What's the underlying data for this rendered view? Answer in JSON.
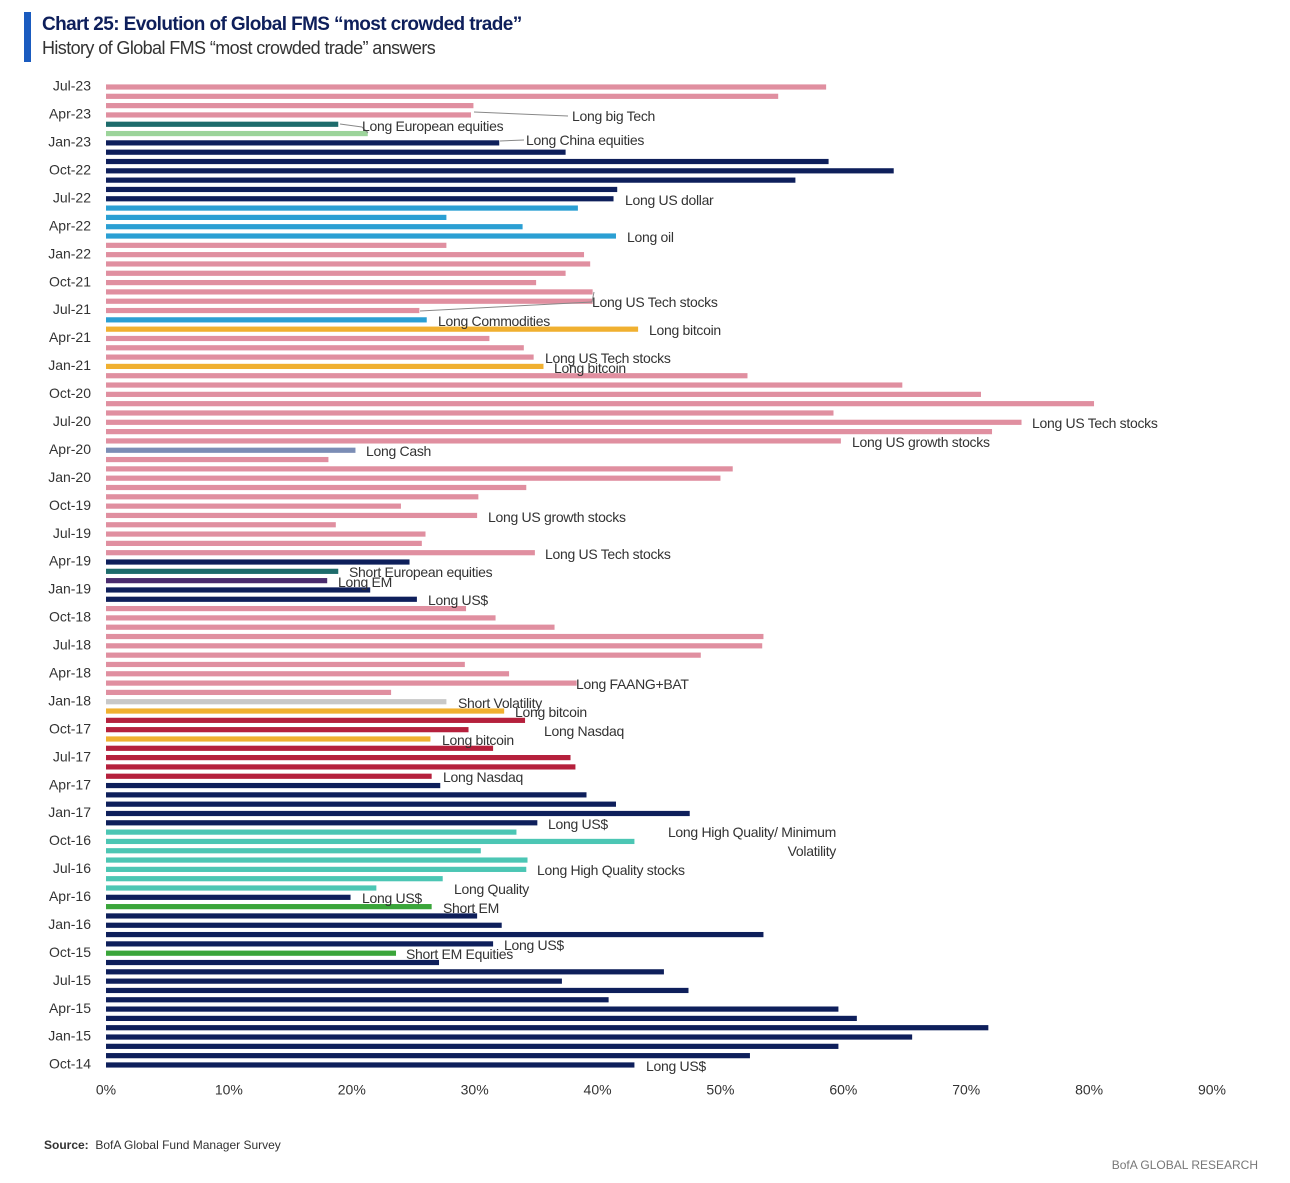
{
  "chart_data": {
    "type": "bar",
    "orientation": "horizontal",
    "title": "Chart 25: Evolution of Global FMS “most crowded trade”",
    "subtitle": "History of Global FMS “most crowded trade” answers",
    "source_label": "Source:",
    "source": "BofA Global Fund Manager Survey",
    "brand": "BofA GLOBAL RESEARCH",
    "categories": [
      "Jul-23",
      null,
      null,
      "Apr-23",
      null,
      null,
      "Jan-23",
      null,
      null,
      "Oct-22",
      null,
      null,
      "Jul-22",
      null,
      null,
      "Apr-22",
      null,
      null,
      "Jan-22",
      null,
      null,
      "Oct-21",
      null,
      null,
      "Jul-21",
      null,
      null,
      "Apr-21",
      null,
      null,
      "Jan-21",
      null,
      null,
      "Oct-20",
      null,
      null,
      "Jul-20",
      null,
      null,
      "Apr-20",
      null,
      null,
      "Jan-20",
      null,
      null,
      "Oct-19",
      null,
      null,
      "Jul-19",
      null,
      null,
      "Apr-19",
      null,
      null,
      "Jan-19",
      null,
      null,
      "Oct-18",
      null,
      null,
      "Jul-18",
      null,
      null,
      "Apr-18",
      null,
      null,
      "Jan-18",
      null,
      null,
      "Oct-17",
      null,
      null,
      "Jul-17",
      null,
      null,
      "Apr-17",
      null,
      null,
      "Jan-17",
      null,
      null,
      "Oct-16",
      null,
      null,
      "Jul-16",
      null,
      null,
      "Apr-16",
      null,
      null,
      "Jan-16",
      null,
      null,
      "Oct-15",
      null,
      null,
      "Jul-15",
      null,
      null,
      "Apr-15",
      null,
      null,
      "Jan-15",
      null,
      null,
      "Oct-14"
    ],
    "values": [
      58.6,
      54.7,
      29.9,
      29.7,
      18.9,
      21.3,
      32.0,
      37.4,
      58.8,
      64.1,
      56.1,
      41.6,
      41.3,
      38.4,
      27.7,
      33.9,
      41.5,
      27.7,
      38.9,
      39.4,
      37.4,
      35.0,
      39.6,
      39.6,
      25.5,
      26.1,
      43.3,
      31.2,
      34.0,
      34.8,
      35.6,
      52.2,
      64.8,
      71.2,
      80.4,
      59.2,
      74.5,
      72.1,
      59.8,
      20.3,
      18.1,
      51.0,
      50.0,
      34.2,
      30.3,
      24.0,
      30.2,
      18.7,
      26.0,
      25.7,
      34.9,
      24.7,
      18.9,
      18.0,
      21.5,
      25.3,
      29.3,
      31.7,
      36.5,
      53.5,
      53.4,
      48.4,
      29.2,
      32.8,
      38.3,
      23.2,
      27.7,
      32.4,
      34.1,
      29.5,
      26.4,
      31.5,
      37.8,
      38.2,
      26.5,
      27.2,
      39.1,
      41.5,
      47.5,
      35.1,
      33.4,
      43.0,
      30.5,
      34.3,
      34.2,
      27.4,
      22.0,
      19.9,
      26.5,
      30.2,
      32.2,
      53.5,
      31.5,
      23.6,
      27.1,
      45.4,
      37.1,
      47.4,
      40.9,
      59.6,
      61.1,
      71.8,
      65.6,
      59.6,
      52.4,
      43.0
    ],
    "colors": [
      "#e08fa0",
      "#e08fa0",
      "#e08fa0",
      "#e08fa0",
      "#1d6b6b",
      "#9cd49a",
      "#0e1f5b",
      "#0e1f5b",
      "#0e1f5b",
      "#0e1f5b",
      "#0e1f5b",
      "#0e1f5b",
      "#0e1f5b",
      "#2b9fd3",
      "#2b9fd3",
      "#2b9fd3",
      "#2b9fd3",
      "#e08fa0",
      "#e08fa0",
      "#e08fa0",
      "#e08fa0",
      "#e08fa0",
      "#e08fa0",
      "#e08fa0",
      "#e08fa0",
      "#2b9fd3",
      "#f0b030",
      "#e08fa0",
      "#e08fa0",
      "#e08fa0",
      "#f0b030",
      "#e08fa0",
      "#e08fa0",
      "#e08fa0",
      "#e08fa0",
      "#e08fa0",
      "#e08fa0",
      "#e08fa0",
      "#e08fa0",
      "#7b8db5",
      "#e08fa0",
      "#e08fa0",
      "#e08fa0",
      "#e08fa0",
      "#e08fa0",
      "#e08fa0",
      "#e08fa0",
      "#e08fa0",
      "#e08fa0",
      "#e08fa0",
      "#e08fa0",
      "#0e1f5b",
      "#1d6b6b",
      "#4a2b6e",
      "#0e1f5b",
      "#0e1f5b",
      "#e08fa0",
      "#e08fa0",
      "#e08fa0",
      "#e08fa0",
      "#e08fa0",
      "#e08fa0",
      "#e08fa0",
      "#e08fa0",
      "#e08fa0",
      "#e08fa0",
      "#c8c8c8",
      "#f0b030",
      "#b5203c",
      "#b5203c",
      "#f0b030",
      "#b5203c",
      "#b5203c",
      "#b5203c",
      "#b5203c",
      "#0e1f5b",
      "#0e1f5b",
      "#0e1f5b",
      "#0e1f5b",
      "#0e1f5b",
      "#4cc6b4",
      "#4cc6b4",
      "#4cc6b4",
      "#4cc6b4",
      "#4cc6b4",
      "#4cc6b4",
      "#4cc6b4",
      "#0e1f5b",
      "#3aa53a",
      "#0e1f5b",
      "#0e1f5b",
      "#0e1f5b",
      "#0e1f5b",
      "#3aa53a",
      "#0e1f5b",
      "#0e1f5b",
      "#0e1f5b",
      "#0e1f5b",
      "#0e1f5b",
      "#0e1f5b",
      "#0e1f5b",
      "#0e1f5b",
      "#0e1f5b",
      "#0e1f5b",
      "#0e1f5b",
      "#0e1f5b"
    ],
    "xlim": [
      0,
      90
    ],
    "xticks": [
      {
        "value": 0,
        "label": "0%"
      },
      {
        "value": 10,
        "label": "10%"
      },
      {
        "value": 20,
        "label": "20%"
      },
      {
        "value": 30,
        "label": "30%"
      },
      {
        "value": 40,
        "label": "40%"
      },
      {
        "value": 50,
        "label": "50%"
      },
      {
        "value": 60,
        "label": "60%"
      },
      {
        "value": 70,
        "label": "70%"
      },
      {
        "value": 80,
        "label": "80%"
      },
      {
        "value": 90,
        "label": "90%"
      }
    ],
    "grid": false,
    "annotations": [
      "Long big Tech",
      "Long European equities",
      "Long China equities",
      "Long US dollar",
      "Long oil",
      "Long US Tech stocks",
      "Long Commodities",
      "Long bitcoin",
      "Long US Tech stocks",
      "Long bitcoin",
      "Long US Tech stocks",
      "Long US growth stocks",
      "Long Cash",
      "Long US growth stocks",
      "Long US Tech stocks",
      "Short European equities",
      "Long EM",
      "Long US$",
      "Long FAANG+BAT",
      "Short Volatility",
      "Long bitcoin",
      "Long Nasdaq",
      "Long bitcoin",
      "Long Nasdaq",
      "Long US$",
      "Long High Quality/ Minimum Volatility",
      "Long High Quality stocks",
      "Long Quality",
      "Long US$",
      "Short EM",
      "Long US$",
      "Short EM Equities",
      "Long US$"
    ]
  }
}
